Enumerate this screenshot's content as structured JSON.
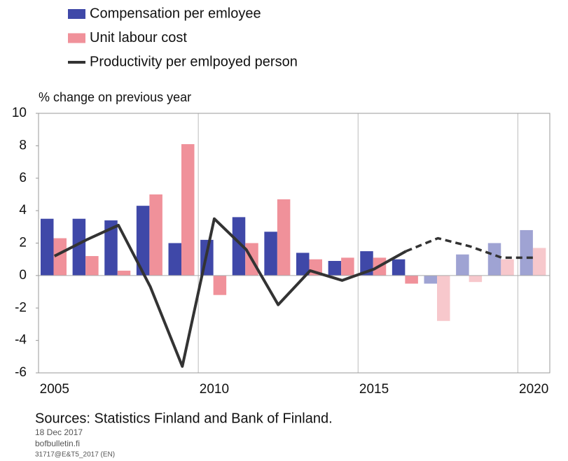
{
  "chart_data": {
    "type": "bar",
    "y_axis_label": "% change on previous year",
    "categories": [
      "2005",
      null,
      null,
      null,
      null,
      "2010",
      null,
      null,
      null,
      null,
      "2015",
      null,
      null,
      null,
      null,
      "2020"
    ],
    "forecast_from": 12,
    "series": [
      {
        "name": "Compensation per emloyee",
        "type": "bar",
        "color": "#3f48a8",
        "values": [
          3.5,
          3.5,
          3.4,
          4.3,
          2.0,
          2.2,
          3.6,
          2.7,
          1.4,
          0.9,
          1.5,
          1.0,
          -0.5,
          1.3,
          2.0,
          2.8
        ]
      },
      {
        "name": "Unit labour cost",
        "type": "bar",
        "color": "#f0919a",
        "values": [
          2.3,
          1.2,
          0.3,
          5.0,
          8.1,
          -1.2,
          2.0,
          4.7,
          1.0,
          1.1,
          1.1,
          -0.5,
          -2.8,
          -0.4,
          1.0,
          1.7
        ]
      },
      {
        "name": "Productivity per emlpoyed person",
        "type": "line",
        "color": "#333333",
        "values": [
          1.2,
          2.2,
          3.1,
          -0.7,
          -5.6,
          3.5,
          1.6,
          -1.8,
          0.3,
          -0.3,
          0.4,
          1.5,
          2.3,
          1.8,
          1.1,
          1.1
        ]
      }
    ],
    "ylim": [
      -6,
      10
    ],
    "yticks": [
      -6,
      -4,
      -2,
      0,
      2,
      4,
      6,
      8,
      10
    ],
    "sources": "Sources: Statistics Finland and Bank of Finland.",
    "date": "18 Dec 2017",
    "website": "bofbulletin.fi",
    "code": "31717@E&T5_2017 (EN)"
  }
}
